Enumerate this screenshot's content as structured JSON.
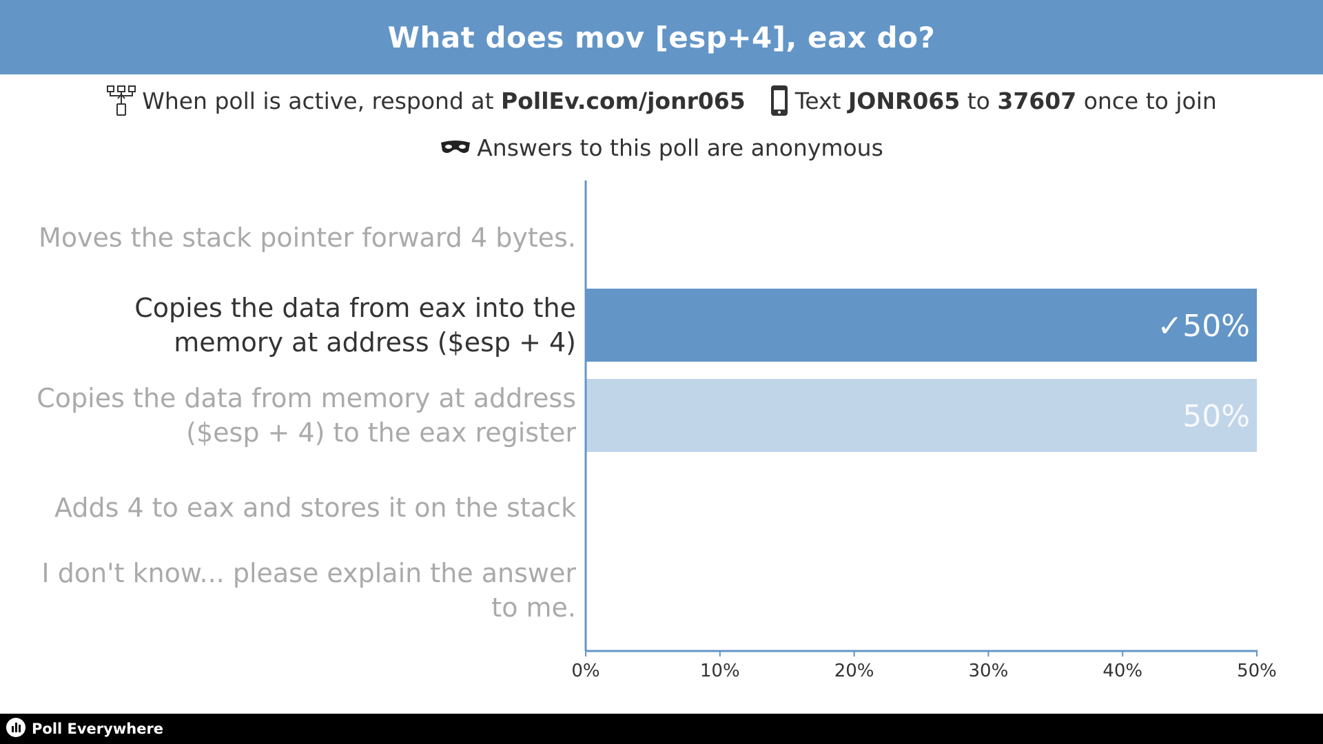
{
  "header": {
    "title": "What does mov [esp+4], eax do?"
  },
  "instructions": {
    "respond_prefix": "When poll is active, respond at",
    "url": "PollEv.com/jonr065",
    "text_prefix": "Text",
    "code": "JONR065",
    "to_word": "to",
    "number": "37607",
    "text_suffix": "once to join",
    "anonymous": "Answers to this poll are anonymous"
  },
  "icons": {
    "network": "network-icon",
    "phone": "phone-icon",
    "mask": "mask-icon",
    "logo": "poll-everywhere-logo-icon"
  },
  "colors": {
    "header_bg": "#6395c7",
    "correct_bar": "#6395c7",
    "other_bar": "#c1d5e9",
    "muted_text": "#aaaaaa",
    "dark_text": "#333333",
    "axis": "#6395c7"
  },
  "chart_data": {
    "type": "bar",
    "orientation": "horizontal",
    "categories": [
      "Moves the stack pointer forward 4 bytes.",
      "Copies the data from eax into the memory at address ($esp + 4)",
      "Copies the data from memory at address ($esp + 4) to the eax register",
      "Adds 4 to eax and stores it on the stack",
      "I don't know... please explain the answer to me."
    ],
    "category_lines": [
      [
        "Moves the stack pointer forward 4 bytes."
      ],
      [
        "Copies the data from eax into the",
        "memory at address ($esp + 4)"
      ],
      [
        "Copies the data from memory at address",
        "($esp + 4) to the eax register"
      ],
      [
        "Adds 4 to eax and stores it on the stack"
      ],
      [
        "I don't know... please explain the answer",
        "to me."
      ]
    ],
    "values": [
      0,
      50,
      50,
      0,
      0
    ],
    "correct_index": 1,
    "value_labels": [
      "",
      "✓50%",
      "50%",
      "",
      ""
    ],
    "xlim": [
      0,
      50
    ],
    "xticks": [
      "0%",
      "10%",
      "20%",
      "30%",
      "40%",
      "50%"
    ],
    "grid": false,
    "legend": "none"
  },
  "footer": {
    "brand": "Poll Everywhere"
  }
}
